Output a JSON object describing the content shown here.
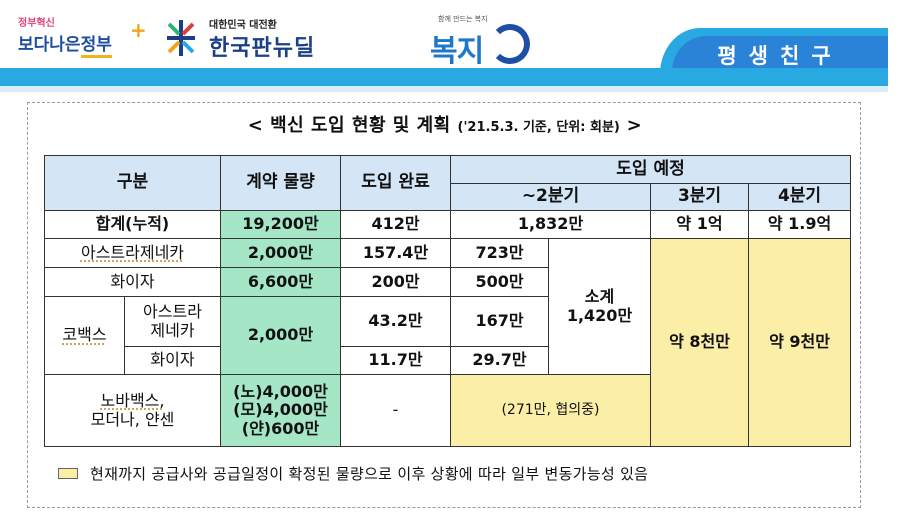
{
  "header": {
    "logo_gov_small": "정부혁신",
    "logo_gov_big_a": "보다나은",
    "logo_gov_big_b": "정부",
    "logo_newdeal_small": "대한민국 대전환",
    "logo_newdeal_big": "한국판뉴딜",
    "logo_welfare_small": "함께 만드는 복지",
    "logo_welfare_big": "복지",
    "tab_label": "평생친구"
  },
  "title": {
    "main": "< 백신 도입 현황 및 계획",
    "sub": "('21.5.3. 기준, 단위: 회분)",
    "close": ">"
  },
  "table": {
    "headers": {
      "category": "구분",
      "contract": "계약 물량",
      "completed": "도입 완료",
      "planned": "도입 예정",
      "q2": "~2분기",
      "q3": "3분기",
      "q4": "4분기"
    },
    "total": {
      "label": "합계(누적)",
      "contract": "19,200만",
      "completed": "412만",
      "q2": "1,832만",
      "q3": "약 1억",
      "q4": "약 1.9억"
    },
    "rows": {
      "az": {
        "label": "아스트라제네카",
        "contract": "2,000만",
        "completed": "157.4만",
        "q2": "723만"
      },
      "pfizer": {
        "label": "화이자",
        "contract": "6,600만",
        "completed": "200만",
        "q2": "500만"
      },
      "covax": {
        "label": "코백스",
        "contract": "2,000만",
        "az_label_1": "아스트라",
        "az_label_2": "제네카",
        "az_completed": "43.2만",
        "az_q2": "167만",
        "pf_label": "화이자",
        "pf_completed": "11.7만",
        "pf_q2": "29.7만"
      },
      "subtotal": {
        "label": "소계",
        "value": "1,420만"
      },
      "q3_rest": "약 8천만",
      "q4_rest": "약 9천만",
      "others": {
        "label_1": "노바백스,",
        "label_2": "모더나, 얀센",
        "contract_1": "(노)4,000만",
        "contract_2": "(모)4,000만",
        "contract_3": "(얀)600만",
        "completed": "-",
        "q2": "(271만, 협의중)"
      }
    }
  },
  "footnote": "현재까지 공급사와 공급일정이 확정된 물량으로 이후 상황에 따라 일부 변동가능성 있음",
  "colors": {
    "band": "#29a9e1",
    "tab": "#2a83d6",
    "header_cell": "#d4e6f6",
    "contract_cell": "#a5e6c7",
    "planned_cell": "#fbeea6"
  }
}
